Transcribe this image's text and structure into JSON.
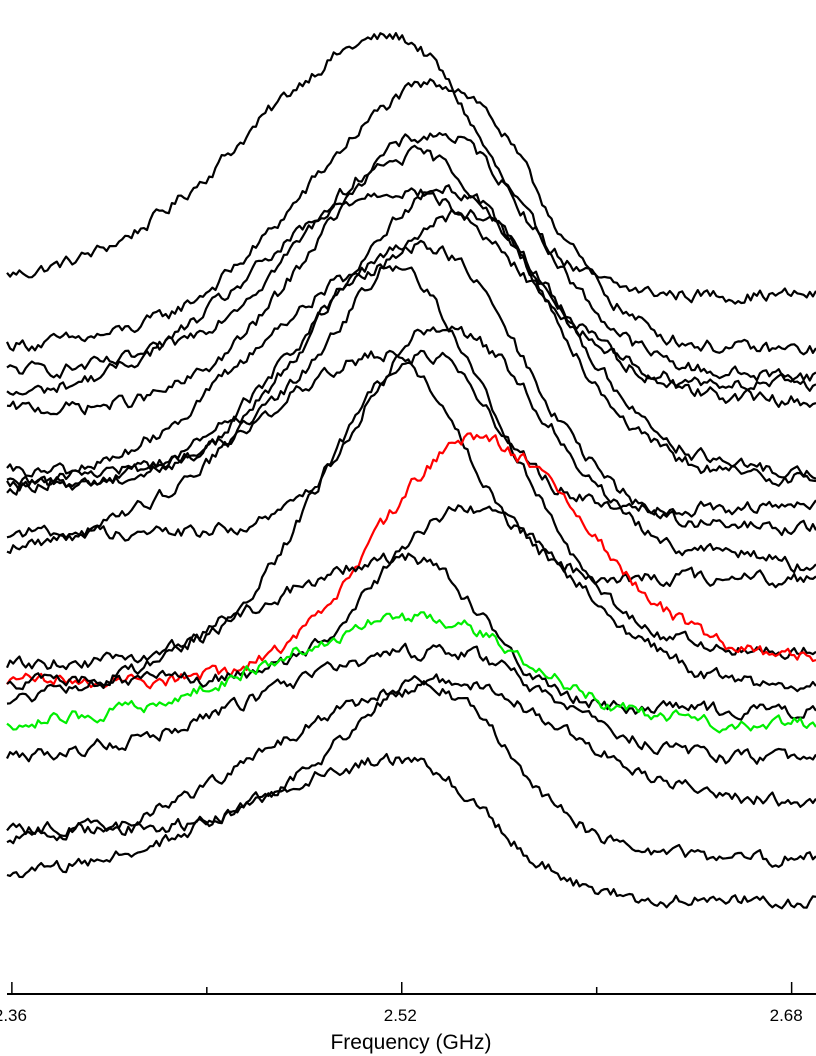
{
  "chart_data": {
    "type": "line",
    "title": "",
    "xlabel": "Frequency (GHz)",
    "ylabel": "",
    "xlim": [
      2.358,
      2.69
    ],
    "x_ticks_major": [
      "2.36",
      "2.52",
      "2.68"
    ],
    "x_ticks_minor": [
      2.44,
      2.6
    ],
    "y_axis_visible": false,
    "grid": false,
    "legend": "none",
    "noise_level": 0.012,
    "colors": {
      "default": "#000000",
      "red": "#ff0000",
      "green": "#00ee00"
    },
    "series": [
      {
        "color": "#000000",
        "offset": 0.9,
        "peak_x": 2.517,
        "amp": 0.66,
        "width_left": 0.06,
        "width_right": 0.035,
        "baseline_left": 0.08,
        "baseline_right": 0.05,
        "shoulder": 0.0
      },
      {
        "color": "#000000",
        "offset": 0.78,
        "peak_x": 2.537,
        "amp": 0.67,
        "width_left": 0.055,
        "width_right": 0.038,
        "baseline_left": 0.05,
        "baseline_right": 0.04,
        "shoulder": 0.0
      },
      {
        "color": "#000000",
        "offset": 0.73,
        "peak_x": 2.535,
        "amp": 0.6,
        "width_left": 0.052,
        "width_right": 0.04,
        "baseline_left": 0.04,
        "baseline_right": 0.03,
        "shoulder": 0.0
      },
      {
        "color": "#000000",
        "offset": 0.68,
        "peak_x": 2.526,
        "amp": 0.6,
        "width_left": 0.045,
        "width_right": 0.04,
        "baseline_left": 0.0,
        "baseline_right": 0.06,
        "shoulder": 0.0
      },
      {
        "color": "#000000",
        "offset": 0.65,
        "peak_x": 2.519,
        "amp": 0.55,
        "width_left": 0.06,
        "width_right": 0.05,
        "baseline_left": 0.05,
        "baseline_right": 0.05,
        "shoulder": 0.0
      },
      {
        "color": "#000000",
        "offset": 0.5,
        "peak_x": 2.54,
        "amp": 0.7,
        "width_left": 0.05,
        "width_right": 0.04,
        "baseline_left": 0.0,
        "baseline_right": 0.02,
        "shoulder": 0.0
      },
      {
        "color": "#000000",
        "offset": 0.48,
        "peak_x": 2.545,
        "amp": 0.66,
        "width_left": 0.048,
        "width_right": 0.042,
        "baseline_left": 0.05,
        "baseline_right": 0.05,
        "shoulder": 0.0
      },
      {
        "color": "#000000",
        "offset": 0.46,
        "peak_x": 2.529,
        "amp": 0.61,
        "width_left": 0.05,
        "width_right": 0.04,
        "baseline_left": 0.04,
        "baseline_right": -0.06,
        "shoulder": 0.0
      },
      {
        "color": "#000000",
        "offset": 0.4,
        "peak_x": 2.517,
        "amp": 0.62,
        "width_left": 0.06,
        "width_right": 0.03,
        "baseline_left": 0.08,
        "baseline_right": 0.05,
        "shoulder": 0.0
      },
      {
        "color": "#000000",
        "offset": 0.3,
        "peak_x": 2.535,
        "amp": 0.58,
        "width_left": 0.03,
        "width_right": 0.045,
        "baseline_left": 0.09,
        "baseline_right": 0.0,
        "shoulder": 0.03
      },
      {
        "color": "#000000",
        "offset": 0.24,
        "peak_x": 2.515,
        "amp": 0.57,
        "width_left": 0.06,
        "width_right": 0.03,
        "baseline_left": 0.1,
        "baseline_right": 0.04,
        "shoulder": 0.0
      },
      {
        "color": "#000000",
        "offset": 0.08,
        "peak_x": 2.53,
        "amp": 0.73,
        "width_left": 0.042,
        "width_right": 0.04,
        "baseline_left": 0.0,
        "baseline_right": 0.03,
        "shoulder": 0.0
      },
      {
        "color": "#ff0000",
        "offset": 0.06,
        "peak_x": 2.55,
        "amp": 0.55,
        "width_left": 0.04,
        "width_right": 0.045,
        "baseline_left": -0.02,
        "baseline_right": 0.03,
        "shoulder": 0.0
      },
      {
        "color": "#000000",
        "offset": 0.04,
        "peak_x": 2.546,
        "amp": 0.4,
        "width_left": 0.035,
        "width_right": 0.045,
        "baseline_left": 0.0,
        "baseline_right": -0.02,
        "shoulder": 0.0
      },
      {
        "color": "#000000",
        "offset": -0.05,
        "peak_x": 2.523,
        "amp": 0.38,
        "width_left": 0.07,
        "width_right": 0.03,
        "baseline_left": 0.02,
        "baseline_right": 0.02,
        "shoulder": 0.0
      },
      {
        "color": "#00ee00",
        "offset": -0.14,
        "peak_x": 2.53,
        "amp": 0.33,
        "width_left": 0.06,
        "width_right": 0.04,
        "baseline_left": 0.08,
        "baseline_right": 0.08,
        "shoulder": 0.0
      },
      {
        "color": "#000000",
        "offset": -0.22,
        "peak_x": 2.535,
        "amp": 0.33,
        "width_left": 0.07,
        "width_right": 0.045,
        "baseline_left": 0.07,
        "baseline_right": 0.07,
        "shoulder": 0.0
      },
      {
        "color": "#000000",
        "offset": -0.31,
        "peak_x": 2.535,
        "amp": 0.35,
        "width_left": 0.04,
        "width_right": 0.05,
        "baseline_left": 0.0,
        "baseline_right": 0.06,
        "shoulder": 0.0
      },
      {
        "color": "#000000",
        "offset": -0.38,
        "peak_x": 2.53,
        "amp": 0.4,
        "width_left": 0.065,
        "width_right": 0.035,
        "baseline_left": 0.03,
        "baseline_right": 0.0,
        "shoulder": 0.0
      },
      {
        "color": "#000000",
        "offset": -0.48,
        "peak_x": 2.52,
        "amp": 0.33,
        "width_left": 0.065,
        "width_right": 0.035,
        "baseline_left": 0.05,
        "baseline_right": 0.0,
        "shoulder": 0.0
      }
    ]
  }
}
